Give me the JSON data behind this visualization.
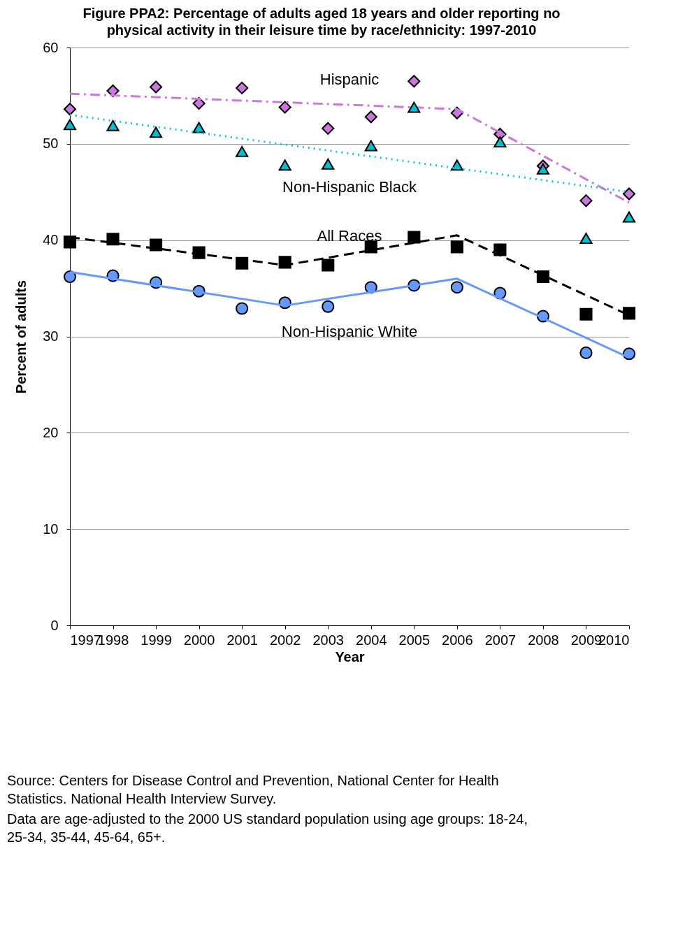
{
  "chart_data": {
    "type": "line",
    "title": "Figure PPA2: Percentage of adults aged 18 years and older reporting no physical activity in their leisure time by race/ethnicity: 1997-2010",
    "xlabel": "Year",
    "ylabel": "Percent of adults",
    "x": [
      1997,
      1998,
      1999,
      2000,
      2001,
      2002,
      2003,
      2004,
      2005,
      2006,
      2007,
      2008,
      2009,
      2010
    ],
    "xlim": [
      1997,
      2010
    ],
    "xticks": [
      1997,
      1998,
      1999,
      2000,
      2001,
      2002,
      2003,
      2004,
      2005,
      2006,
      2007,
      2008,
      2009,
      2010
    ],
    "ylim": [
      0,
      60
    ],
    "yticks": [
      0,
      10,
      20,
      30,
      40,
      50,
      60
    ],
    "grid": "y",
    "legend": false,
    "series": [
      {
        "name": "Hispanic",
        "type": "scatter",
        "marker": "diamond",
        "color": "#cc77dd",
        "values": [
          53.6,
          55.5,
          55.9,
          54.2,
          55.8,
          53.8,
          51.6,
          52.8,
          56.5,
          53.2,
          51.0,
          47.7,
          44.1,
          44.8
        ]
      },
      {
        "line_style": "dashdot",
        "color": "#cc77dd",
        "x": [
          1997,
          2006,
          2010
        ],
        "values": [
          55.2,
          53.6,
          43.9
        ]
      },
      {
        "name": "Non-Hispanic Black",
        "type": "scatter",
        "marker": "triangle",
        "color": "#00c0d0",
        "values": [
          52.0,
          51.9,
          51.2,
          51.7,
          49.2,
          47.8,
          47.9,
          49.8,
          53.8,
          47.8,
          50.2,
          47.4,
          40.2,
          42.4
        ]
      },
      {
        "line_style": "dotted",
        "color": "#00ccdd",
        "x": [
          1997,
          2010
        ],
        "values": [
          53.0,
          45.0
        ]
      },
      {
        "name": "All Races",
        "type": "scatter",
        "marker": "square",
        "color": "#000000",
        "values": [
          39.8,
          40.1,
          39.5,
          38.7,
          37.6,
          37.7,
          37.4,
          39.3,
          40.3,
          39.3,
          39.0,
          36.2,
          32.3,
          32.4
        ]
      },
      {
        "line_style": "dashed",
        "color": "#000000",
        "x": [
          1997,
          2002,
          2006,
          2010
        ],
        "values": [
          40.3,
          37.4,
          40.5,
          32.2
        ]
      },
      {
        "name": "Non-Hispanic White",
        "type": "scatter",
        "marker": "circle",
        "color": "#6699ff",
        "values": [
          36.2,
          36.3,
          35.6,
          34.7,
          32.9,
          33.5,
          33.1,
          35.1,
          35.3,
          35.1,
          34.5,
          32.1,
          28.3,
          28.2
        ]
      },
      {
        "line_style": "solid",
        "color": "#6699ff",
        "x": [
          1997,
          2002,
          2006,
          2010
        ],
        "values": [
          36.7,
          33.2,
          36.0,
          27.8
        ]
      }
    ],
    "annotations": [
      "Source: Centers for Disease Control and Prevention, National Center for Health Statistics. National Health Interview Survey.",
      "Data are age-adjusted to the 2000 US standard population using age groups: 18-24, 25-34, 35-44, 45-64, 65+."
    ]
  }
}
